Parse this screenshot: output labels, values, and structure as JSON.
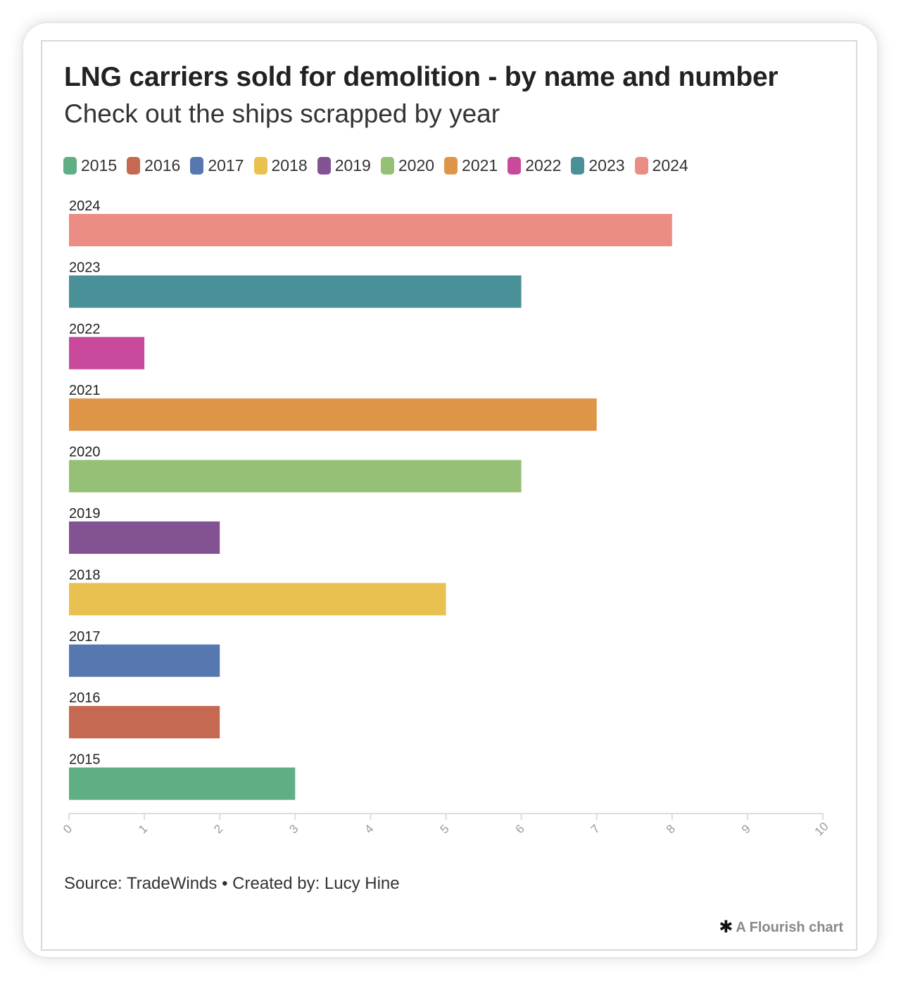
{
  "header": {
    "title": "LNG carriers sold for demolition - by name and number",
    "subtitle": "Check out the ships scrapped by year"
  },
  "footer": {
    "source": "Source: TradeWinds • Created by: Lucy Hine",
    "branding": "A Flourish chart",
    "branding_icon": "flourish-asterisk-icon"
  },
  "colors": {
    "2015": "#5fae84",
    "2016": "#c56953",
    "2017": "#5677b0",
    "2018": "#e8c150",
    "2019": "#835293",
    "2020": "#96c076",
    "2021": "#de9548",
    "2022": "#c94a9c",
    "2023": "#4a9099",
    "2024": "#eb8d85"
  },
  "chart_data": {
    "type": "bar",
    "orientation": "horizontal",
    "legend": [
      "2015",
      "2016",
      "2017",
      "2018",
      "2019",
      "2020",
      "2021",
      "2022",
      "2023",
      "2024"
    ],
    "categories": [
      "2024",
      "2023",
      "2022",
      "2021",
      "2020",
      "2019",
      "2018",
      "2017",
      "2016",
      "2015"
    ],
    "values": [
      8,
      6,
      1,
      7,
      6,
      2,
      5,
      2,
      2,
      3
    ],
    "xlim": [
      0,
      10
    ],
    "xticks": [
      "0",
      "1",
      "2",
      "3",
      "4",
      "5",
      "6",
      "7",
      "8",
      "9",
      "10"
    ],
    "legend_position": "top-left",
    "grid": false
  }
}
